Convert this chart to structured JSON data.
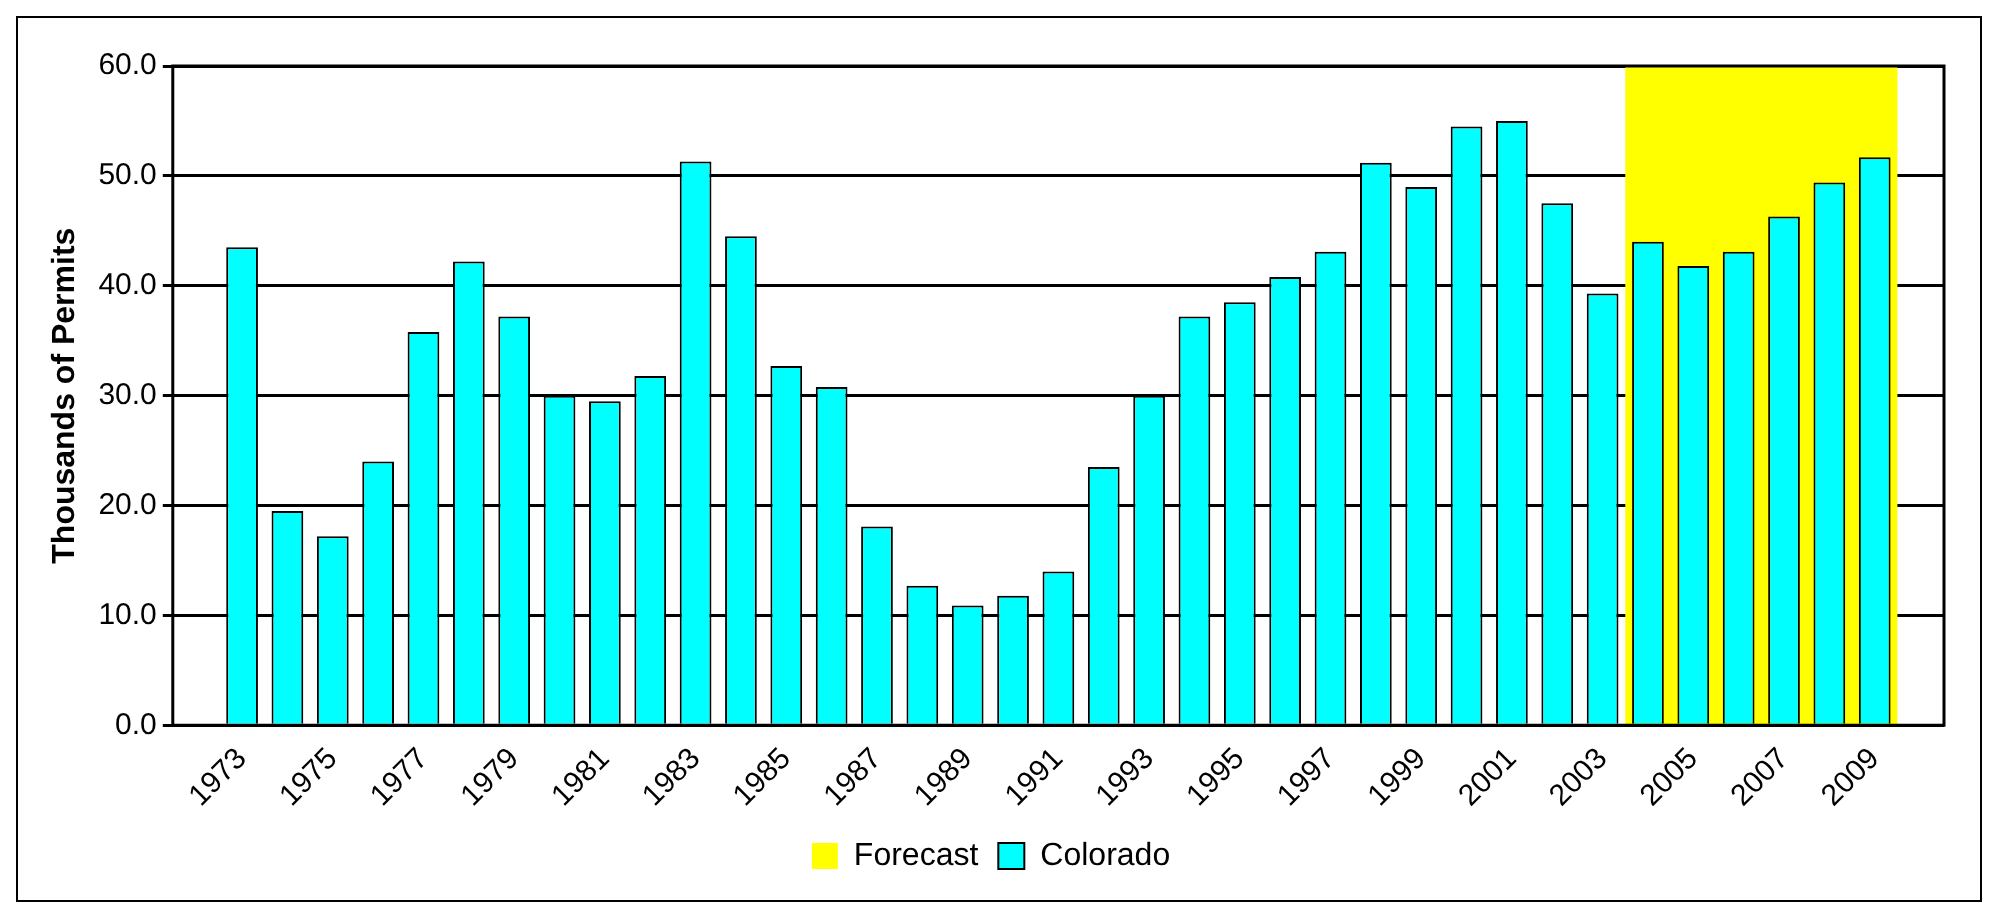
{
  "chart_data": {
    "type": "bar",
    "ylabel": "Thousands of Permits",
    "x": [
      1973,
      1974,
      1975,
      1976,
      1977,
      1978,
      1979,
      1980,
      1981,
      1982,
      1983,
      1984,
      1985,
      1986,
      1987,
      1988,
      1989,
      1990,
      1991,
      1992,
      1993,
      1994,
      1995,
      1996,
      1997,
      1998,
      1999,
      2000,
      2001,
      2002,
      2003,
      2004,
      2005,
      2006,
      2007,
      2008,
      2009
    ],
    "series": [
      {
        "name": "Colorado",
        "color": "#00ffff",
        "values": [
          43.5,
          19.5,
          17.2,
          24.0,
          35.8,
          42.2,
          37.2,
          30.0,
          29.5,
          31.8,
          51.3,
          44.5,
          32.7,
          30.8,
          18.1,
          12.7,
          10.9,
          11.8,
          14.0,
          23.5,
          30.0,
          37.2,
          38.5,
          40.8,
          43.1,
          51.2,
          49.0,
          54.5,
          55.0,
          47.5,
          39.3,
          44.0,
          41.8,
          43.1,
          46.3,
          49.4,
          51.7
        ]
      }
    ],
    "xlim": [
      1972.5,
      2009.5
    ],
    "xticks": [
      1973,
      1975,
      1977,
      1979,
      1981,
      1983,
      1985,
      1987,
      1989,
      1991,
      1993,
      1995,
      1997,
      1999,
      2001,
      2003,
      2005,
      2007,
      2009
    ],
    "ylim": [
      0,
      60
    ],
    "yticks": [
      {
        "value": 0,
        "label": "0.0"
      },
      {
        "value": 10,
        "label": "10.0"
      },
      {
        "value": 20,
        "label": "20.0"
      },
      {
        "value": 30,
        "label": "30.0"
      },
      {
        "value": 40,
        "label": "40.0"
      },
      {
        "value": 50,
        "label": "50.0"
      },
      {
        "value": 60,
        "label": "60.0"
      }
    ],
    "bands": [
      {
        "axis": "x",
        "from": 2003.5,
        "to": 2009.5,
        "label": "Forecast",
        "color": "#ffff00"
      }
    ],
    "grid": "y",
    "legend": "bottom"
  }
}
